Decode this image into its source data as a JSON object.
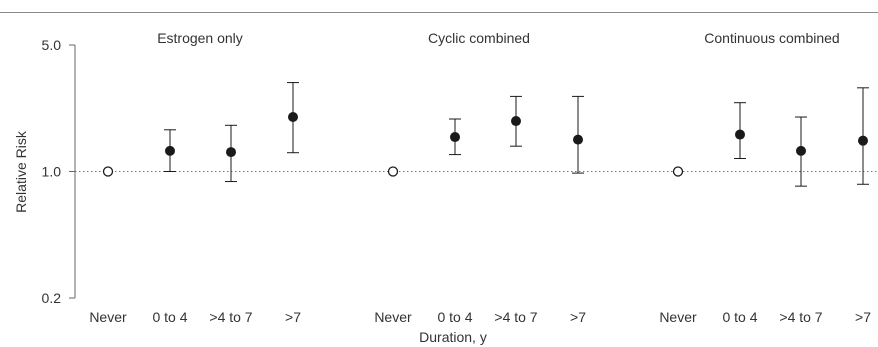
{
  "chart_data": {
    "type": "scatter",
    "error_bars": true,
    "yscale": "log",
    "ylim": [
      0.2,
      5.0
    ],
    "yticks": [
      "0.2",
      "1.0",
      "5.0"
    ],
    "reference_line": {
      "y": 1.0,
      "style": "dotted"
    },
    "xlabel": "Duration, y",
    "ylabel": "Relative Risk",
    "categories": [
      "Never",
      "0 to 4",
      ">4 to 7",
      ">7"
    ],
    "panels": [
      {
        "title": "Estrogen only",
        "points": [
          {
            "x": "Never",
            "y": 1.0,
            "low": 1.0,
            "high": 1.0,
            "marker": "open"
          },
          {
            "x": "0 to 4",
            "y": 1.3,
            "low": 1.0,
            "high": 1.7,
            "marker": "filled"
          },
          {
            "x": ">4 to 7",
            "y": 1.28,
            "low": 0.88,
            "high": 1.8,
            "marker": "filled"
          },
          {
            "x": ">7",
            "y": 2.0,
            "low": 1.27,
            "high": 3.1,
            "marker": "filled"
          }
        ]
      },
      {
        "title": "Cyclic combined",
        "points": [
          {
            "x": "Never",
            "y": 1.0,
            "low": 1.0,
            "high": 1.0,
            "marker": "open"
          },
          {
            "x": "0 to 4",
            "y": 1.55,
            "low": 1.24,
            "high": 1.95,
            "marker": "filled"
          },
          {
            "x": ">4 to 7",
            "y": 1.9,
            "low": 1.38,
            "high": 2.6,
            "marker": "filled"
          },
          {
            "x": ">7",
            "y": 1.5,
            "low": 0.98,
            "high": 2.6,
            "marker": "filled"
          }
        ]
      },
      {
        "title": "Continuous combined",
        "points": [
          {
            "x": "Never",
            "y": 1.0,
            "low": 1.0,
            "high": 1.0,
            "marker": "open"
          },
          {
            "x": "0 to 4",
            "y": 1.6,
            "low": 1.18,
            "high": 2.4,
            "marker": "filled"
          },
          {
            "x": ">4 to 7",
            "y": 1.3,
            "low": 0.83,
            "high": 2.0,
            "marker": "filled"
          },
          {
            "x": ">7",
            "y": 1.48,
            "low": 0.85,
            "high": 2.9,
            "marker": "filled"
          }
        ]
      }
    ],
    "colors": {
      "marker": "#1a1a1a",
      "axis": "#666666",
      "text": "#333333",
      "rule": "#8a8a8a"
    }
  }
}
